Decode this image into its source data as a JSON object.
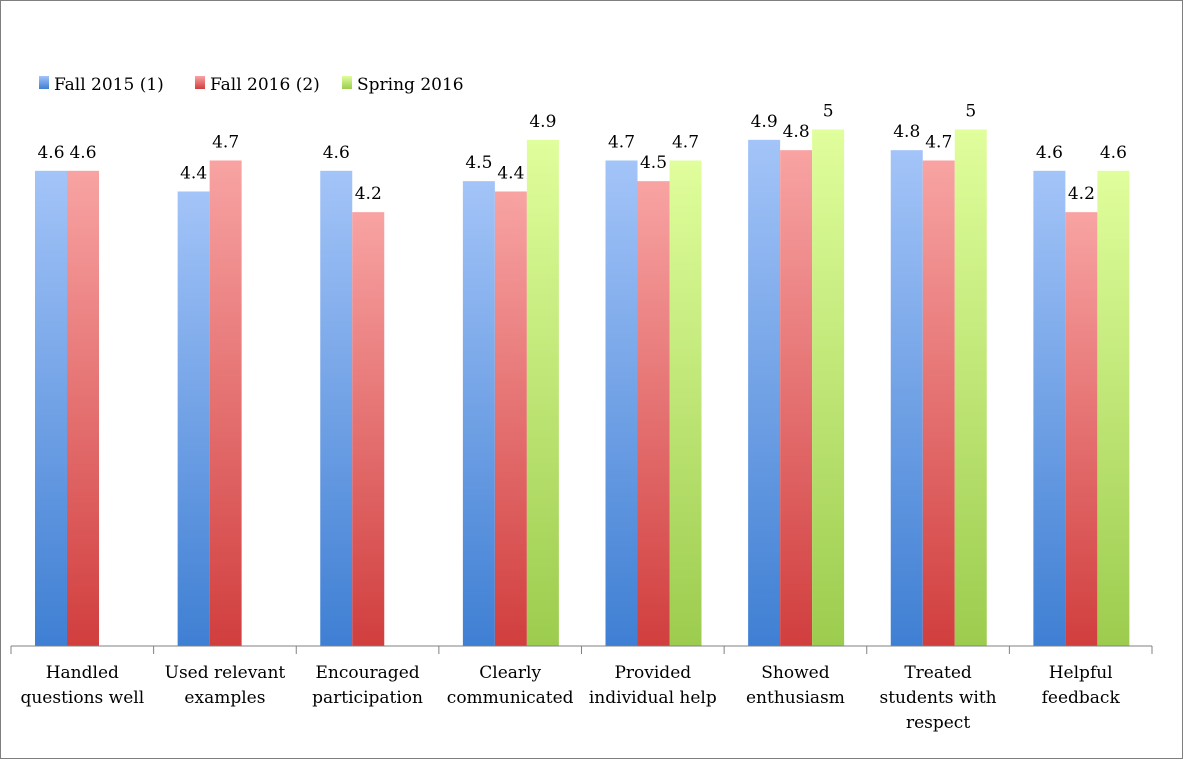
{
  "chart_data": {
    "type": "bar",
    "title": "",
    "xlabel": "",
    "ylabel": "",
    "ylim": [
      0,
      5
    ],
    "grid": false,
    "legend_position": "top-left",
    "categories": [
      [
        "Handled",
        "questions well"
      ],
      [
        "Used relevant",
        "examples"
      ],
      [
        "Encouraged",
        "participation"
      ],
      [
        "Clearly",
        "communicated"
      ],
      [
        "Provided",
        "individual help"
      ],
      [
        "Showed",
        "enthusiasm"
      ],
      [
        "Treated",
        "students with",
        "respect"
      ],
      [
        "Helpful",
        "feedback"
      ]
    ],
    "series": [
      {
        "name": "Fall 2015 (1)",
        "color_top": "#a3c4f8",
        "color_bottom": "#3f7fd3",
        "values": [
          4.6,
          4.4,
          4.6,
          4.5,
          4.7,
          4.9,
          4.8,
          4.6
        ],
        "labels": [
          "4.6",
          "4.4",
          "4.6",
          "4.5",
          "4.7",
          "4.9",
          "4.8",
          "4.6"
        ]
      },
      {
        "name": "Fall 2016 (2)",
        "color_top": "#f8a3a3",
        "color_bottom": "#d13e3e",
        "values": [
          4.6,
          4.7,
          4.2,
          4.4,
          4.5,
          4.8,
          4.7,
          4.2
        ],
        "labels": [
          "4.6",
          "4.7",
          "4.2",
          "4.4",
          "4.5",
          "4.8",
          "4.7",
          "4.2"
        ]
      },
      {
        "name": "Spring 2016",
        "color_top": "#e0fe9c",
        "color_bottom": "#9ccc4e",
        "values": [
          null,
          null,
          null,
          4.9,
          4.7,
          5.0,
          5.0,
          4.6
        ],
        "labels": [
          "",
          "",
          "",
          "4.9",
          "4.7",
          "5",
          "5",
          "4.6"
        ]
      }
    ]
  }
}
